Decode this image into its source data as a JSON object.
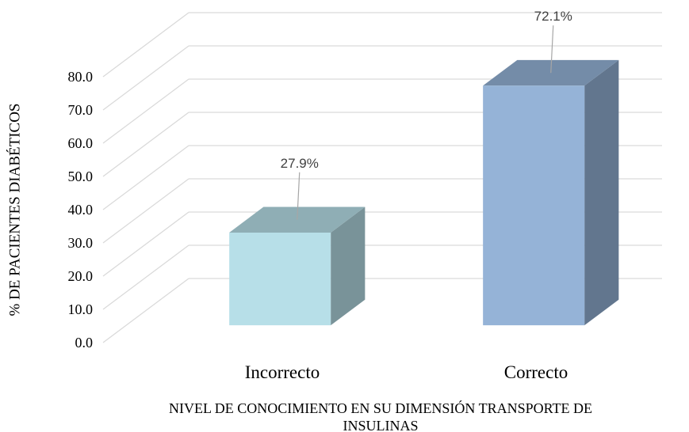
{
  "chart_data": {
    "type": "bar3d",
    "categories": [
      "Incorrecto",
      "Correcto"
    ],
    "values": [
      27.9,
      72.1
    ],
    "value_labels": [
      "27.9%",
      "72.1%"
    ],
    "colors": [
      "#b7dfe8",
      "#95b3d7"
    ],
    "ylim": [
      0,
      80
    ],
    "yticks": [
      {
        "value": 0,
        "label": "0.0"
      },
      {
        "value": 10,
        "label": "10.0"
      },
      {
        "value": 20,
        "label": "20.0"
      },
      {
        "value": 30,
        "label": "30.0"
      },
      {
        "value": 40,
        "label": "40.0"
      },
      {
        "value": 50,
        "label": "50.0"
      },
      {
        "value": 60,
        "label": "60.0"
      },
      {
        "value": 70,
        "label": "70.0"
      },
      {
        "value": 80,
        "label": "80.0"
      }
    ],
    "y_label": "% DE PACIENTES DIABÉTICOS",
    "x_label_lines": [
      "NIVEL DE CONOCIMIENTO EN SU DIMENSIÓN TRANSPORTE DE",
      "INSULINAS"
    ],
    "grid": true
  }
}
